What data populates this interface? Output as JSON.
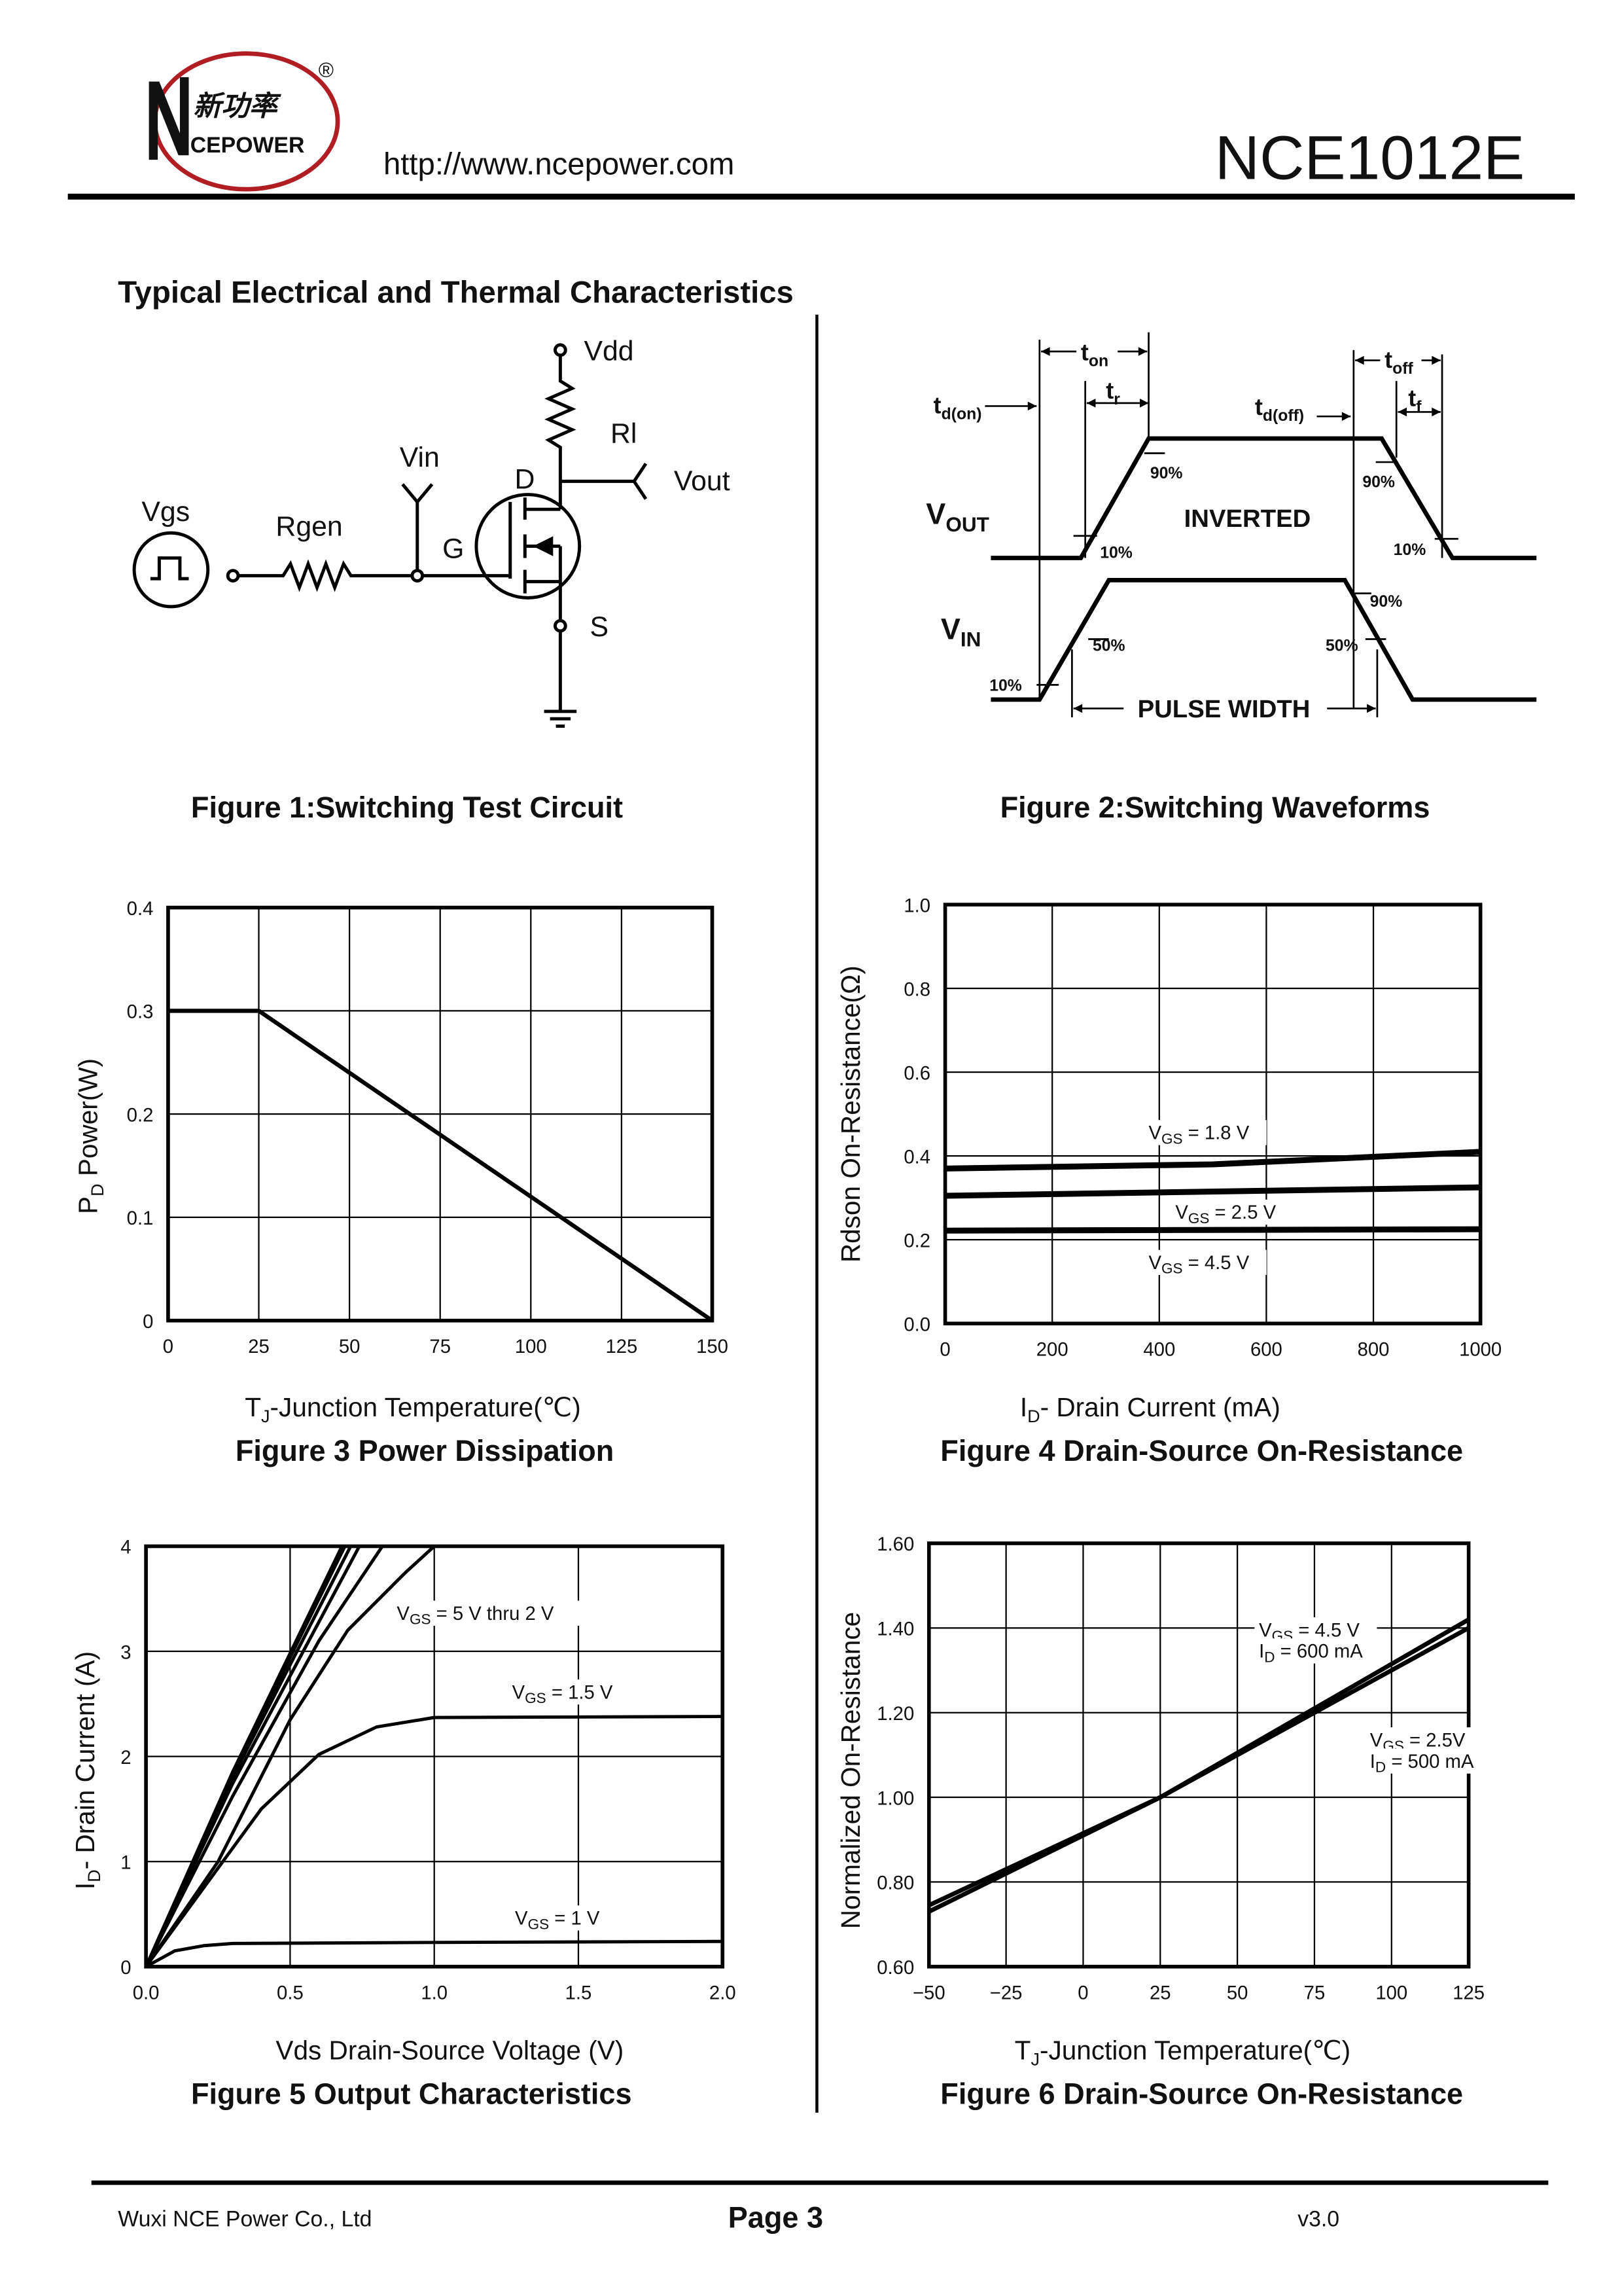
{
  "header": {
    "logo_cn": "新功率",
    "logo_en": "CEPOWER",
    "logo_reg": "®",
    "url": "http://www.ncepower.com",
    "part_number": "NCE1012E"
  },
  "section_title": "Typical Electrical and Thermal Characteristics",
  "figure1": {
    "caption": "Figure 1:Switching Test Circuit",
    "labels": {
      "vdd": "Vdd",
      "rl": "Rl",
      "vin": "Vin",
      "d": "D",
      "vout": "Vout",
      "vgs": "Vgs",
      "rgen": "Rgen",
      "g": "G",
      "s": "S"
    }
  },
  "figure2": {
    "caption": "Figure 2:Switching Waveforms",
    "ton": {
      "main": "t",
      "sub": "on"
    },
    "tr": {
      "main": "t",
      "sub": "r"
    },
    "tdon": {
      "main": "t",
      "sub": "d(on)"
    },
    "tdoff": {
      "main": "t",
      "sub": "d(off)"
    },
    "toff": {
      "main": "t",
      "sub": "off"
    },
    "tf": {
      "main": "t",
      "sub": "f"
    },
    "vout": {
      "main": "V",
      "sub": "OUT"
    },
    "vin": {
      "main": "V",
      "sub": "IN"
    },
    "inverted": "INVERTED",
    "pulse_width": "PULSE WIDTH",
    "pct": {
      "p90a": "90%",
      "p90b": "90%",
      "p10a": "10%",
      "p10b": "10%",
      "p90c": "90%",
      "p50a": "50%",
      "p50b": "50%",
      "p10c": "10%"
    }
  },
  "figure3": {
    "caption": "Figure 3 Power Dissipation",
    "ylabel": {
      "main": "P",
      "sub": "D",
      "rest": "  Power(W)"
    },
    "xlabel": {
      "main": "T",
      "sub": "J",
      "rest": "-Junction Temperature(℃)"
    }
  },
  "figure4": {
    "caption": "Figure 4 Drain-Source On-Resistance",
    "ylabel": "Rdson On-Resistance(Ω)",
    "xlabel": {
      "main": "I",
      "sub": "D",
      "rest": "-  Drain  Current  (mA)"
    }
  },
  "figure5": {
    "caption": "Figure 5 Output Characteristics",
    "ylabel": {
      "main": "I",
      "sub": "D",
      "rest": "- Drain Current (A)"
    },
    "xlabel": "Vds Drain-Source Voltage (V)"
  },
  "figure6": {
    "caption": "Figure 6 Drain-Source On-Resistance",
    "ylabel": "Normalized On-Resistance",
    "xlabel": {
      "main": "T",
      "sub": "J",
      "rest": "-Junction Temperature(℃)"
    }
  },
  "chart_data": [
    {
      "type": "line",
      "title": "Figure 3 Power Dissipation",
      "xlabel": "TJ-Junction Temperature(℃)",
      "ylabel": "PD Power(W)",
      "xlim": [
        0,
        150
      ],
      "ylim": [
        0,
        0.4
      ],
      "grid": true,
      "xticks": [
        "0",
        "25",
        "50",
        "75",
        "100",
        "125",
        "150"
      ],
      "xtick_values": [
        0,
        25,
        50,
        75,
        100,
        125,
        150
      ],
      "yticks": [
        "0",
        "0.1",
        "0.2",
        "0.3",
        "0.4"
      ],
      "ytick_values": [
        0,
        0.1,
        0.2,
        0.3,
        0.4
      ],
      "series": [
        {
          "name": "PD",
          "x": [
            0,
            25,
            150
          ],
          "y": [
            0.3,
            0.3,
            0
          ]
        }
      ],
      "annotations": []
    },
    {
      "type": "line",
      "title": "Figure 4 Drain-Source On-Resistance",
      "xlabel": "ID- Drain Current (mA)",
      "ylabel": "Rdson On-Resistance(Ω)",
      "xlim": [
        0,
        1000
      ],
      "ylim": [
        0,
        1.0
      ],
      "grid": true,
      "xticks": [
        "0",
        "200",
        "400",
        "600",
        "800",
        "1000"
      ],
      "xtick_values": [
        0,
        200,
        400,
        600,
        800,
        1000
      ],
      "yticks": [
        "0.0",
        "0.2",
        "0.4",
        "0.6",
        "0.8",
        "1.0"
      ],
      "ytick_values": [
        0,
        0.2,
        0.4,
        0.6,
        0.8,
        1.0
      ],
      "series": [
        {
          "name": "VGS = 1.8 V",
          "x": [
            0,
            500,
            1000
          ],
          "y": [
            0.37,
            0.38,
            0.41
          ]
        },
        {
          "name": "VGS = 2.5 V",
          "x": [
            0,
            1000
          ],
          "y": [
            0.305,
            0.325
          ]
        },
        {
          "name": "VGS = 4.5 V",
          "x": [
            0,
            1000
          ],
          "y": [
            0.222,
            0.225
          ]
        }
      ],
      "annotations": [
        {
          "main": "V",
          "sub": "GS",
          "rest": " = 1.8 V",
          "at": [
            380,
            0.44
          ]
        },
        {
          "main": "V",
          "sub": "GS",
          "rest": " = 2.5 V",
          "at": [
            430,
            0.25
          ]
        },
        {
          "main": "V",
          "sub": "GS",
          "rest": " = 4.5 V",
          "at": [
            380,
            0.13
          ]
        }
      ]
    },
    {
      "type": "line",
      "title": "Figure 5 Output Characteristics",
      "xlabel": "Vds Drain-Source Voltage (V)",
      "ylabel": "ID- Drain Current (A)",
      "xlim": [
        0,
        2.0
      ],
      "ylim": [
        0,
        4
      ],
      "grid": true,
      "xticks": [
        "0.0",
        "0.5",
        "1.0",
        "1.5",
        "2.0"
      ],
      "xtick_values": [
        0,
        0.5,
        1.0,
        1.5,
        2.0
      ],
      "yticks": [
        "0",
        "1",
        "2",
        "3",
        "4"
      ],
      "ytick_values": [
        0,
        1,
        2,
        3,
        4
      ],
      "series": [
        {
          "name": "VGS = 5 V",
          "x": [
            0,
            0.3,
            0.68
          ],
          "y": [
            0,
            1.85,
            4
          ]
        },
        {
          "name": "VGS = 4.5 V",
          "x": [
            0,
            0.3,
            0.69
          ],
          "y": [
            0,
            1.83,
            4
          ]
        },
        {
          "name": "VGS = 4 V",
          "x": [
            0,
            0.3,
            0.71
          ],
          "y": [
            0,
            1.8,
            4
          ]
        },
        {
          "name": "VGS = 3 V",
          "x": [
            0,
            0.3,
            0.74
          ],
          "y": [
            0,
            1.74,
            4
          ]
        },
        {
          "name": "VGS = 2.5 V",
          "x": [
            0,
            0.3,
            0.6,
            0.82
          ],
          "y": [
            0,
            1.62,
            3.1,
            4
          ]
        },
        {
          "name": "VGS = 2 V",
          "x": [
            0,
            0.25,
            0.5,
            0.7,
            0.9,
            1.0
          ],
          "y": [
            0,
            1.0,
            2.35,
            3.2,
            3.75,
            4
          ]
        },
        {
          "name": "VGS = 1.5 V",
          "x": [
            0,
            0.2,
            0.4,
            0.6,
            0.8,
            1.0,
            2.0
          ],
          "y": [
            0,
            0.75,
            1.5,
            2.02,
            2.28,
            2.37,
            2.38
          ]
        },
        {
          "name": "VGS = 1 V",
          "x": [
            0,
            0.1,
            0.2,
            0.3,
            1.0,
            2.0
          ],
          "y": [
            0,
            0.15,
            0.2,
            0.22,
            0.23,
            0.24
          ]
        }
      ],
      "annotations": [
        {
          "main": "V",
          "sub": "GS",
          "rest": " = 5 V thru 2 V",
          "at": [
            0.87,
            3.3
          ]
        },
        {
          "main": "V",
          "sub": "GS",
          "rest": " = 1.5 V",
          "at": [
            1.27,
            2.55
          ]
        },
        {
          "main": "V",
          "sub": "GS",
          "rest": " = 1 V",
          "at": [
            1.28,
            0.4
          ]
        }
      ]
    },
    {
      "type": "line",
      "title": "Figure 6 Drain-Source On-Resistance",
      "xlabel": "TJ-Junction Temperature(℃)",
      "ylabel": "Normalized On-Resistance",
      "xlim": [
        -50,
        125
      ],
      "ylim": [
        0.6,
        1.6
      ],
      "grid": true,
      "xticks": [
        "−50",
        "−25",
        "0",
        "25",
        "50",
        "75",
        "100",
        "125"
      ],
      "xtick_values": [
        -50,
        -25,
        0,
        25,
        50,
        75,
        100,
        125
      ],
      "yticks": [
        "0.60",
        "0.80",
        "1.00",
        "1.20",
        "1.40",
        "1.60"
      ],
      "ytick_values": [
        0.6,
        0.8,
        1.0,
        1.2,
        1.4,
        1.6
      ],
      "series": [
        {
          "name": "VGS = 4.5 V, ID = 600 mA",
          "x": [
            -50,
            25,
            125
          ],
          "y": [
            0.73,
            1.0,
            1.42
          ]
        },
        {
          "name": "VGS = 2.5V, ID = 500 mA",
          "x": [
            -50,
            25,
            125
          ],
          "y": [
            0.745,
            1.0,
            1.4
          ]
        }
      ],
      "annotations": [
        {
          "main": "V",
          "sub": "GS",
          "rest": " = 4.5 V",
          "at": [
            57,
            1.38
          ]
        },
        {
          "main": "I",
          "sub": "D",
          "rest": " = 600 mA",
          "at": [
            57,
            1.33
          ]
        },
        {
          "main": "V",
          "sub": "GS",
          "rest": " = 2.5V",
          "at": [
            93,
            1.12
          ]
        },
        {
          "main": "I",
          "sub": "D",
          "rest": " = 500 mA",
          "at": [
            93,
            1.07
          ]
        }
      ]
    }
  ],
  "footer": {
    "company": "Wuxi NCE Power Co., Ltd",
    "page": "Page 3",
    "version": "v3.0"
  }
}
